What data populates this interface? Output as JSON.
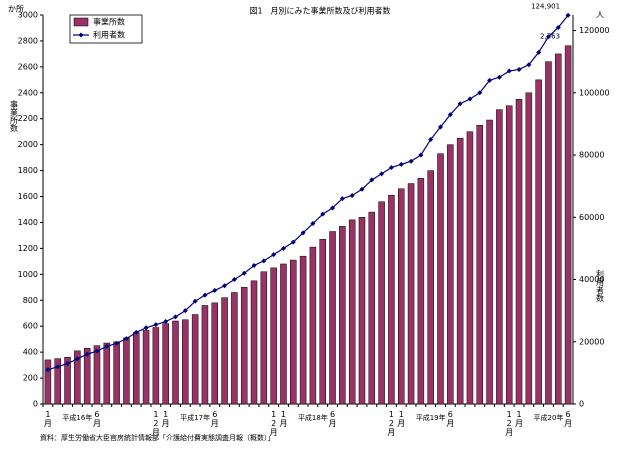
{
  "chart_data": {
    "type": "bar-line",
    "title": "図1　月別にみた事業所数及び利用者数",
    "y_unit": "か所",
    "y_label": "事業所数",
    "y2_unit": "人",
    "y2_label": "利用者数",
    "source": "資料：厚生労働省大臣官房統計情報部「介護給付費実態調査月報（概数）」",
    "year_labels": [
      "平成16年",
      "平成17年",
      "平成18年",
      "平成19年",
      "平成20年"
    ],
    "categories": [
      "1月",
      null,
      null,
      null,
      null,
      "6月",
      null,
      null,
      null,
      null,
      null,
      "12月",
      "1月",
      null,
      null,
      null,
      null,
      "6月",
      null,
      null,
      null,
      null,
      null,
      "12月",
      "1月",
      null,
      null,
      null,
      null,
      "6月",
      null,
      null,
      null,
      null,
      null,
      "12月",
      "1月",
      null,
      null,
      null,
      null,
      "6月",
      null,
      null,
      null,
      null,
      null,
      "12月",
      "1月",
      null,
      null,
      null,
      null,
      "6月"
    ],
    "series": [
      {
        "name": "事業所数",
        "type": "bar",
        "color": "#993366",
        "values": [
          340,
          350,
          360,
          410,
          430,
          450,
          470,
          480,
          510,
          550,
          570,
          590,
          620,
          640,
          650,
          690,
          760,
          780,
          820,
          860,
          900,
          950,
          1020,
          1050,
          1080,
          1110,
          1140,
          1210,
          1270,
          1330,
          1370,
          1420,
          1440,
          1480,
          1560,
          1610,
          1660,
          1700,
          1740,
          1800,
          1930,
          2000,
          2050,
          2100,
          2150,
          2190,
          2270,
          2300,
          2350,
          2400,
          2500,
          2640,
          2700,
          2763
        ],
        "value_labels": [
          null,
          null,
          null,
          null,
          null,
          null,
          null,
          null,
          null,
          null,
          null,
          null,
          null,
          null,
          null,
          null,
          null,
          null,
          null,
          null,
          null,
          null,
          null,
          null,
          null,
          null,
          null,
          null,
          null,
          null,
          null,
          null,
          null,
          null,
          null,
          null,
          null,
          null,
          null,
          null,
          null,
          null,
          null,
          null,
          null,
          null,
          null,
          null,
          null,
          null,
          null,
          null,
          null,
          "2,763"
        ]
      },
      {
        "name": "利用者数",
        "type": "line",
        "axis": "y2",
        "color": "#000080",
        "values": [
          11000,
          12000,
          13000,
          14500,
          16000,
          17000,
          18500,
          19500,
          21000,
          23000,
          24500,
          25500,
          26500,
          28000,
          30000,
          33000,
          35000,
          36500,
          38000,
          40000,
          42000,
          44500,
          46000,
          48000,
          50000,
          52000,
          55000,
          58000,
          61000,
          63000,
          66000,
          67000,
          69000,
          72000,
          74000,
          76000,
          77000,
          78000,
          80000,
          85000,
          89000,
          93000,
          96500,
          98000,
          100000,
          104000,
          105000,
          107000,
          107500,
          109000,
          113000,
          118000,
          121000,
          124901
        ],
        "value_labels": [
          null,
          null,
          null,
          null,
          null,
          null,
          null,
          null,
          null,
          null,
          null,
          null,
          null,
          null,
          null,
          null,
          null,
          null,
          null,
          null,
          null,
          null,
          null,
          null,
          null,
          null,
          null,
          null,
          null,
          null,
          null,
          null,
          null,
          null,
          null,
          null,
          null,
          null,
          null,
          null,
          null,
          null,
          null,
          null,
          null,
          null,
          null,
          null,
          null,
          null,
          null,
          null,
          null,
          "124,901"
        ]
      }
    ],
    "ylim": [
      0,
      3000
    ],
    "yticks": [
      0,
      200,
      400,
      600,
      800,
      1000,
      1200,
      1400,
      1600,
      1800,
      2000,
      2200,
      2400,
      2600,
      2800,
      3000
    ],
    "y2lim": [
      0,
      125000
    ],
    "y2ticks": [
      0,
      20000,
      40000,
      60000,
      80000,
      100000,
      120000
    ],
    "grid": false
  }
}
